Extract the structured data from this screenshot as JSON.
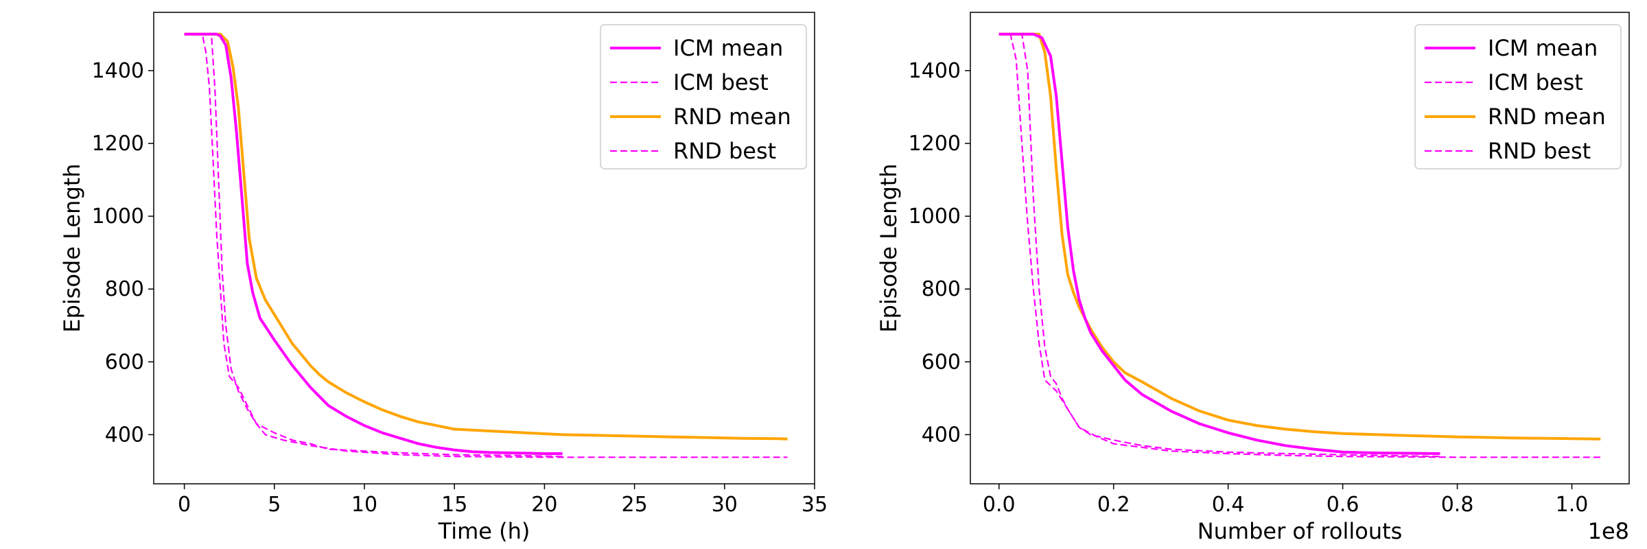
{
  "legend_entries": [
    {
      "label": "ICM mean",
      "series": "icm_mean"
    },
    {
      "label": "ICM best",
      "series": "icm_best"
    },
    {
      "label": "RND mean",
      "series": "rnd_mean"
    },
    {
      "label": "RND best",
      "series": "rnd_best"
    }
  ],
  "colors": {
    "icm_mean": "#ff00ff",
    "icm_best": "#ff00ff",
    "rnd_mean": "#ffa500",
    "rnd_best": "#ff00ff"
  },
  "chart_data": [
    {
      "type": "line",
      "xlabel": "Time (h)",
      "ylabel": "Episode Length",
      "xlim": [
        -1.7,
        35
      ],
      "ylim": [
        265,
        1560
      ],
      "xticks": [
        0,
        5,
        10,
        15,
        20,
        25,
        30,
        35
      ],
      "xtick_labels": [
        "0",
        "5",
        "10",
        "15",
        "20",
        "25",
        "30",
        "35"
      ],
      "yticks": [
        400,
        600,
        800,
        1000,
        1200,
        1400
      ],
      "ytick_labels": [
        "400",
        "600",
        "800",
        "1000",
        "1200",
        "1400"
      ],
      "offset_text": "",
      "grid": false,
      "legend_position": "top-right",
      "series": [
        {
          "key": "icm_mean",
          "style": "solid",
          "points": [
            [
              0,
              1500
            ],
            [
              1.8,
              1500
            ],
            [
              2.0,
              1495
            ],
            [
              2.3,
              1470
            ],
            [
              2.6,
              1380
            ],
            [
              2.9,
              1230
            ],
            [
              3.2,
              1050
            ],
            [
              3.5,
              870
            ],
            [
              3.8,
              790
            ],
            [
              4.2,
              720
            ],
            [
              4.6,
              690
            ],
            [
              5.0,
              660
            ],
            [
              5.5,
              625
            ],
            [
              6.0,
              590
            ],
            [
              6.5,
              560
            ],
            [
              7.0,
              530
            ],
            [
              7.5,
              505
            ],
            [
              8.0,
              480
            ],
            [
              8.5,
              465
            ],
            [
              9.0,
              450
            ],
            [
              10,
              425
            ],
            [
              11,
              405
            ],
            [
              12,
              390
            ],
            [
              13,
              375
            ],
            [
              14,
              365
            ],
            [
              15,
              358
            ],
            [
              16,
              353
            ],
            [
              17,
              351
            ],
            [
              18,
              350
            ],
            [
              19,
              349
            ],
            [
              20,
              348
            ],
            [
              21,
              348
            ]
          ]
        },
        {
          "key": "icm_best",
          "style": "dashed",
          "points": [
            [
              0,
              1500
            ],
            [
              1.0,
              1500
            ],
            [
              1.2,
              1450
            ],
            [
              1.4,
              1350
            ],
            [
              1.6,
              1150
            ],
            [
              1.8,
              950
            ],
            [
              2.0,
              800
            ],
            [
              2.2,
              650
            ],
            [
              2.5,
              560
            ],
            [
              3.0,
              530
            ],
            [
              3.5,
              480
            ],
            [
              4.0,
              430
            ],
            [
              5.0,
              405
            ],
            [
              6.0,
              385
            ],
            [
              7.0,
              375
            ],
            [
              8.0,
              360
            ],
            [
              10,
              355
            ],
            [
              12,
              350
            ],
            [
              15,
              345
            ],
            [
              18,
              343
            ],
            [
              21,
              340
            ]
          ]
        },
        {
          "key": "rnd_mean",
          "style": "solid",
          "points": [
            [
              0,
              1500
            ],
            [
              2.0,
              1500
            ],
            [
              2.4,
              1480
            ],
            [
              2.7,
              1410
            ],
            [
              3.0,
              1300
            ],
            [
              3.3,
              1120
            ],
            [
              3.6,
              940
            ],
            [
              4.0,
              830
            ],
            [
              4.5,
              770
            ],
            [
              5.0,
              730
            ],
            [
              5.5,
              690
            ],
            [
              6.0,
              650
            ],
            [
              6.5,
              620
            ],
            [
              7.0,
              590
            ],
            [
              7.5,
              565
            ],
            [
              8.0,
              545
            ],
            [
              9.0,
              515
            ],
            [
              10,
              490
            ],
            [
              11,
              468
            ],
            [
              12,
              450
            ],
            [
              13,
              435
            ],
            [
              14,
              425
            ],
            [
              15,
              415
            ],
            [
              17,
              410
            ],
            [
              19,
              405
            ],
            [
              21,
              400
            ],
            [
              23,
              398
            ],
            [
              25,
              396
            ],
            [
              27,
              394
            ],
            [
              29,
              392
            ],
            [
              31,
              390
            ],
            [
              33,
              389
            ],
            [
              33.5,
              388
            ]
          ]
        },
        {
          "key": "rnd_best",
          "style": "dashed",
          "points": [
            [
              0,
              1500
            ],
            [
              1.5,
              1500
            ],
            [
              1.7,
              1350
            ],
            [
              1.9,
              1100
            ],
            [
              2.1,
              850
            ],
            [
              2.3,
              700
            ],
            [
              2.6,
              580
            ],
            [
              3.0,
              520
            ],
            [
              3.5,
              470
            ],
            [
              4.0,
              430
            ],
            [
              4.5,
              400
            ],
            [
              5.5,
              385
            ],
            [
              7.0,
              370
            ],
            [
              9.0,
              355
            ],
            [
              12,
              345
            ],
            [
              15,
              340
            ],
            [
              20,
              338
            ],
            [
              25,
              338
            ],
            [
              30,
              338
            ],
            [
              33.5,
              338
            ]
          ]
        }
      ]
    },
    {
      "type": "line",
      "xlabel": "Number of rollouts",
      "ylabel": "Episode Length",
      "xlim": [
        -0.05,
        1.1
      ],
      "ylim": [
        265,
        1560
      ],
      "xticks": [
        0.0,
        0.2,
        0.4,
        0.6,
        0.8,
        1.0
      ],
      "xtick_labels": [
        "0.0",
        "0.2",
        "0.4",
        "0.6",
        "0.8",
        "1.0"
      ],
      "yticks": [
        400,
        600,
        800,
        1000,
        1200,
        1400
      ],
      "ytick_labels": [
        "400",
        "600",
        "800",
        "1000",
        "1200",
        "1400"
      ],
      "offset_text": "1e8",
      "grid": false,
      "legend_position": "top-right",
      "series": [
        {
          "key": "icm_mean",
          "style": "solid",
          "points": [
            [
              0,
              1500
            ],
            [
              0.06,
              1500
            ],
            [
              0.075,
              1490
            ],
            [
              0.09,
              1440
            ],
            [
              0.1,
              1330
            ],
            [
              0.11,
              1150
            ],
            [
              0.12,
              970
            ],
            [
              0.13,
              850
            ],
            [
              0.14,
              770
            ],
            [
              0.15,
              720
            ],
            [
              0.16,
              680
            ],
            [
              0.18,
              630
            ],
            [
              0.2,
              590
            ],
            [
              0.22,
              550
            ],
            [
              0.25,
              510
            ],
            [
              0.3,
              465
            ],
            [
              0.35,
              430
            ],
            [
              0.4,
              405
            ],
            [
              0.45,
              385
            ],
            [
              0.5,
              370
            ],
            [
              0.55,
              360
            ],
            [
              0.6,
              352
            ],
            [
              0.65,
              350
            ],
            [
              0.7,
              349
            ],
            [
              0.77,
              348
            ]
          ]
        },
        {
          "key": "icm_best",
          "style": "dashed",
          "points": [
            [
              0,
              1500
            ],
            [
              0.04,
              1500
            ],
            [
              0.05,
              1400
            ],
            [
              0.06,
              1050
            ],
            [
              0.07,
              800
            ],
            [
              0.08,
              640
            ],
            [
              0.09,
              560
            ],
            [
              0.1,
              540
            ],
            [
              0.11,
              500
            ],
            [
              0.12,
              470
            ],
            [
              0.14,
              420
            ],
            [
              0.16,
              400
            ],
            [
              0.2,
              385
            ],
            [
              0.25,
              370
            ],
            [
              0.3,
              360
            ],
            [
              0.4,
              352
            ],
            [
              0.5,
              348
            ],
            [
              0.6,
              345
            ],
            [
              0.7,
              342
            ],
            [
              0.77,
              340
            ]
          ]
        },
        {
          "key": "rnd_mean",
          "style": "solid",
          "points": [
            [
              0,
              1500
            ],
            [
              0.07,
              1500
            ],
            [
              0.08,
              1450
            ],
            [
              0.09,
              1330
            ],
            [
              0.1,
              1130
            ],
            [
              0.11,
              950
            ],
            [
              0.12,
              840
            ],
            [
              0.13,
              790
            ],
            [
              0.14,
              750
            ],
            [
              0.16,
              690
            ],
            [
              0.18,
              640
            ],
            [
              0.2,
              600
            ],
            [
              0.22,
              570
            ],
            [
              0.25,
              545
            ],
            [
              0.3,
              500
            ],
            [
              0.35,
              465
            ],
            [
              0.4,
              440
            ],
            [
              0.45,
              425
            ],
            [
              0.5,
              415
            ],
            [
              0.55,
              408
            ],
            [
              0.6,
              403
            ],
            [
              0.7,
              398
            ],
            [
              0.8,
              394
            ],
            [
              0.9,
              391
            ],
            [
              1.0,
              389
            ],
            [
              1.05,
              388
            ]
          ]
        },
        {
          "key": "rnd_best",
          "style": "dashed",
          "points": [
            [
              0,
              1500
            ],
            [
              0.02,
              1500
            ],
            [
              0.03,
              1430
            ],
            [
              0.04,
              1200
            ],
            [
              0.05,
              980
            ],
            [
              0.06,
              800
            ],
            [
              0.07,
              650
            ],
            [
              0.08,
              550
            ],
            [
              0.1,
              520
            ],
            [
              0.12,
              470
            ],
            [
              0.14,
              420
            ],
            [
              0.17,
              395
            ],
            [
              0.2,
              375
            ],
            [
              0.25,
              365
            ],
            [
              0.3,
              355
            ],
            [
              0.4,
              348
            ],
            [
              0.5,
              343
            ],
            [
              0.6,
              340
            ],
            [
              0.8,
              338
            ],
            [
              1.0,
              338
            ],
            [
              1.05,
              338
            ]
          ]
        }
      ]
    }
  ]
}
